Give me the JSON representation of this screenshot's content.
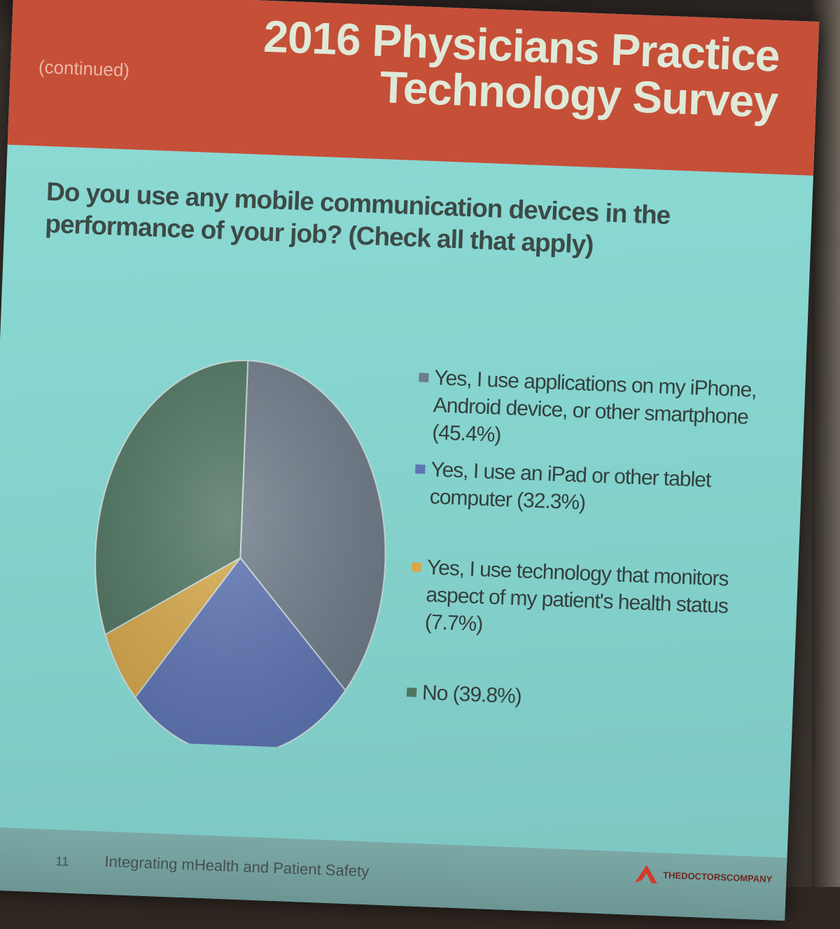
{
  "slide": {
    "continued": "(continued)",
    "title_line1": "2016 Physicians Practice",
    "title_line2": "Technology Survey",
    "question": "Do you use any mobile communication devices in the performance of your job? (Check all that apply)",
    "page_number": "11",
    "footer_text": "Integrating mHealth and Patient Safety",
    "logo_text": "THEDOCTORSCOMPANY"
  },
  "colors": {
    "header": "#c64f38",
    "background": "#8ad8d3",
    "logo": "#d23a2a"
  },
  "chart_data": {
    "type": "pie",
    "title": "",
    "start_angle_deg": 0,
    "direction": "clockwise",
    "slices": [
      {
        "label": "Yes, I use applications on my iPhone, Android device, or other smartphone (45.4%)",
        "value": 45.4,
        "color": "#6f7c8a",
        "icon": "legend-square"
      },
      {
        "label": "Yes, I use an iPad or other tablet computer (32.3%)",
        "value": 32.3,
        "color": "#5d74b4",
        "icon": "legend-square"
      },
      {
        "label": "Yes, I use technology that monitors aspect of my patient's health status (7.7%)",
        "value": 7.7,
        "color": "#d7a84a",
        "icon": "legend-square"
      },
      {
        "label": "No (39.8%)",
        "value": 39.8,
        "color": "#4f7561",
        "icon": "legend-square"
      }
    ],
    "legend_position": "right"
  }
}
